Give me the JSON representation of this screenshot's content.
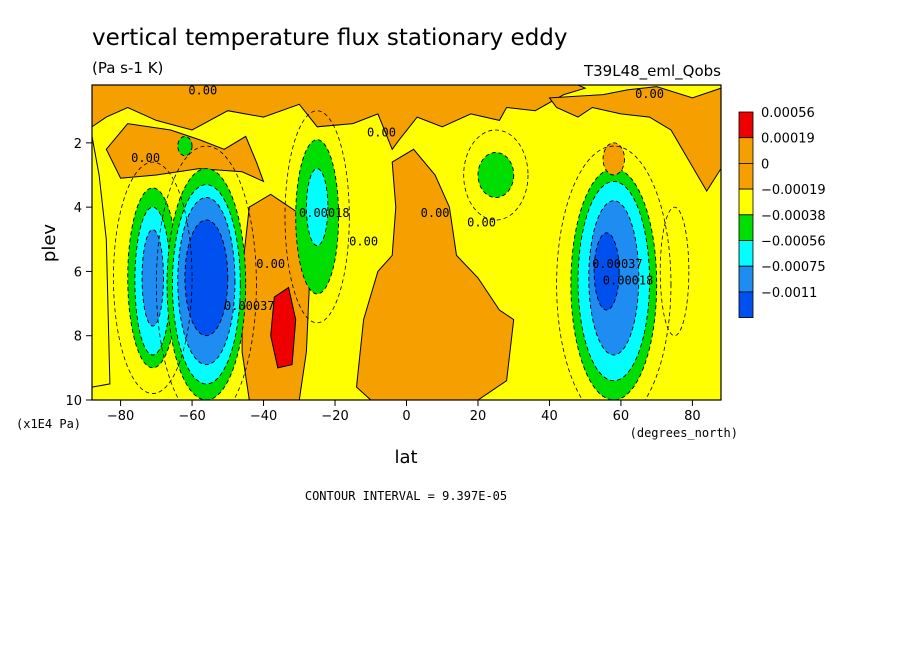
{
  "chart_data": {
    "type": "heatmap",
    "title": "vertical temperature flux stationary eddy",
    "units": "(Pa s-1 K)",
    "experiment": "T39L48_eml_Qobs",
    "xlabel": "lat",
    "ylabel": "plev",
    "x_units": "(degrees_north)",
    "y_units": "(x1E4 Pa)",
    "xlim": [
      -88,
      88
    ],
    "ylim": [
      10,
      0.2
    ],
    "x_ticks": [
      -80,
      -60,
      -40,
      -20,
      0,
      20,
      40,
      60,
      80
    ],
    "x_tick_labels": [
      "−80",
      "−60",
      "−40",
      "−20",
      "0",
      "20",
      "40",
      "60",
      "80"
    ],
    "y_ticks": [
      2,
      4,
      6,
      8,
      10
    ],
    "y_tick_labels": [
      "2",
      "4",
      "6",
      "8",
      "10"
    ],
    "contour_interval_text": "CONTOUR INTERVAL = 9.397E-05",
    "levels": [
      {
        "label": "0.00056",
        "color": "#ee0000"
      },
      {
        "label": "0.00019",
        "color": "#f5a000"
      },
      {
        "label": "0",
        "color": "#f5a000"
      },
      {
        "label": "−0.00019",
        "color": "#ffff00"
      },
      {
        "label": "−0.00038",
        "color": "#00dd00"
      },
      {
        "label": "−0.00056",
        "color": "#00ffff"
      },
      {
        "label": "−0.00075",
        "color": "#1e8cf0"
      },
      {
        "label": "−0.0011",
        "color": "#0050f0"
      }
    ],
    "contour_labels": [
      {
        "text": "0.00",
        "lat": -57,
        "plev": 0.5
      },
      {
        "text": "0.00",
        "lat": 68,
        "plev": 0.6
      },
      {
        "text": "0.00",
        "lat": -7,
        "plev": 1.8
      },
      {
        "text": "0.00",
        "lat": -73,
        "plev": 2.6
      },
      {
        "text": "0.00",
        "lat": 8,
        "plev": 4.3
      },
      {
        "text": "0.00",
        "lat": 21,
        "plev": 4.6
      },
      {
        "text": "0.00",
        "lat": -12,
        "plev": 5.2
      },
      {
        "text": "0.00018",
        "lat": -23,
        "plev": 4.3
      },
      {
        "text": "0.00037",
        "lat": -44,
        "plev": 7.2
      },
      {
        "text": "0.00",
        "lat": -38,
        "plev": 5.9
      },
      {
        "text": "0.00037",
        "lat": 59,
        "plev": 5.9
      },
      {
        "text": "0.00018",
        "lat": 62,
        "plev": 6.4
      }
    ],
    "features": [
      {
        "kind": "negative",
        "lat": -71,
        "plev": 6.2,
        "value": -0.00056
      },
      {
        "kind": "negative",
        "lat": -56,
        "plev": 6.3,
        "value": -0.00075
      },
      {
        "kind": "negative",
        "lat": -25,
        "plev": 4.0,
        "value": -0.00056
      },
      {
        "kind": "positive",
        "lat": -34,
        "plev": 7.5,
        "value": 0.00056
      },
      {
        "kind": "negative",
        "lat": 58,
        "plev": 6.2,
        "value": -0.00075
      },
      {
        "kind": "negative",
        "lat": 25,
        "plev": 3.0,
        "value": -0.00038
      }
    ]
  }
}
